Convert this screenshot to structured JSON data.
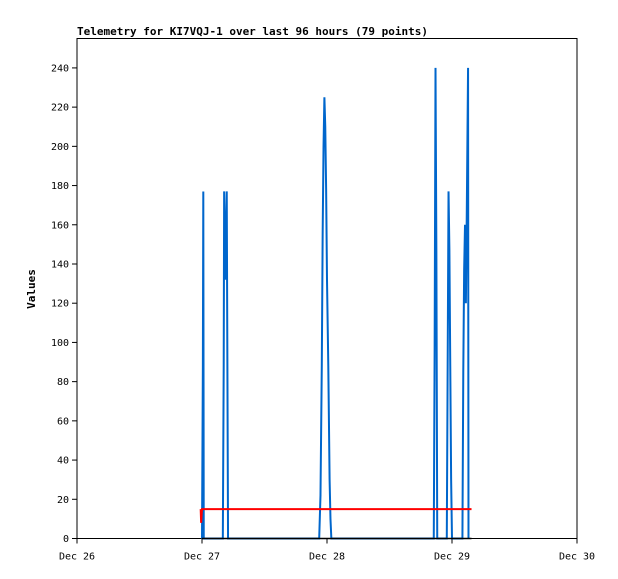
{
  "chart_data": {
    "type": "line",
    "title": "Telemetry for KI7VQJ-1 over last 96 hours (79 points)",
    "xlabel": "",
    "ylabel": "Values",
    "x_ticks": [
      "Dec 26",
      "Dec 27",
      "Dec 28",
      "Dec 29",
      "Dec 30"
    ],
    "y_ticks": [
      "0",
      "20",
      "40",
      "60",
      "80",
      "100",
      "120",
      "140",
      "160",
      "180",
      "200",
      "220",
      "240"
    ],
    "xlim": [
      "Dec 26",
      "Dec 30"
    ],
    "ylim": [
      0,
      255
    ],
    "grid": false,
    "legend": "none",
    "series": [
      {
        "color": "#0066cc",
        "points": [
          [
            "Dec 27 00:00",
            0
          ],
          [
            "Dec 27 00:10",
            88
          ],
          [
            "Dec 27 00:15",
            177
          ],
          [
            "Dec 27 00:20",
            0
          ],
          [
            "Dec 27 04:00",
            0
          ],
          [
            "Dec 27 04:10",
            88
          ],
          [
            "Dec 27 04:15",
            177
          ],
          [
            "Dec 27 04:30",
            132
          ],
          [
            "Dec 27 04:45",
            177
          ],
          [
            "Dec 27 05:00",
            0
          ],
          [
            "Dec 27 22:30",
            0
          ],
          [
            "Dec 27 22:45",
            22
          ],
          [
            "Dec 27 23:00",
            88
          ],
          [
            "Dec 27 23:10",
            155
          ],
          [
            "Dec 27 23:20",
            200
          ],
          [
            "Dec 27 23:30",
            225
          ],
          [
            "Dec 27 23:40",
            210
          ],
          [
            "Dec 27 23:50",
            178
          ],
          [
            "Dec 28 00:00",
            132
          ],
          [
            "Dec 28 00:15",
            88
          ],
          [
            "Dec 28 00:30",
            30
          ],
          [
            "Dec 28 00:40",
            10
          ],
          [
            "Dec 28 00:50",
            0
          ],
          [
            "Dec 28 20:30",
            0
          ],
          [
            "Dec 28 20:40",
            97
          ],
          [
            "Dec 28 20:50",
            240
          ],
          [
            "Dec 28 21:00",
            145
          ],
          [
            "Dec 28 21:10",
            0
          ],
          [
            "Dec 28 23:00",
            0
          ],
          [
            "Dec 28 23:10",
            88
          ],
          [
            "Dec 28 23:20",
            177
          ],
          [
            "Dec 28 23:30",
            147
          ],
          [
            "Dec 28 23:40",
            88
          ],
          [
            "Dec 28 23:50",
            30
          ],
          [
            "Dec 29 00:00",
            0
          ],
          [
            "Dec 29 02:00",
            0
          ],
          [
            "Dec 29 02:10",
            85
          ],
          [
            "Dec 29 02:20",
            137
          ],
          [
            "Dec 29 02:30",
            160
          ],
          [
            "Dec 29 02:40",
            120
          ],
          [
            "Dec 29 02:50",
            165
          ],
          [
            "Dec 29 03:00",
            215
          ],
          [
            "Dec 29 03:05",
            240
          ],
          [
            "Dec 29 03:10",
            0
          ]
        ]
      },
      {
        "color": "#ff0000",
        "points": [
          [
            "Dec 26 23:45",
            15
          ],
          [
            "Dec 26 23:50",
            8
          ],
          [
            "Dec 27 00:00",
            15
          ],
          [
            "Dec 29 03:45",
            15
          ]
        ]
      },
      {
        "color": "#000000",
        "points": [
          [
            "Dec 27 00:00",
            0
          ],
          [
            "Dec 29 03:45",
            0
          ]
        ]
      }
    ]
  }
}
